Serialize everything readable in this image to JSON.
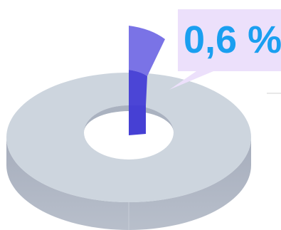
{
  "chart_data": {
    "type": "pie",
    "style": "3d-donut",
    "title": "",
    "highlighted_label": "0,6 %",
    "slices": [
      {
        "value": 0.6,
        "color": "#4b45d6",
        "highlighted": true
      },
      {
        "value": 99.4,
        "color": "#cdd5de",
        "highlighted": false
      }
    ],
    "colors": {
      "highlight_top": "#7a73e6",
      "highlight_side": "#4640d4",
      "ring_top": "#cdd5de",
      "ring_side": "#a9b0be",
      "callout_bg": "#ece0fb",
      "callout_text": "#1a9ff0"
    }
  }
}
